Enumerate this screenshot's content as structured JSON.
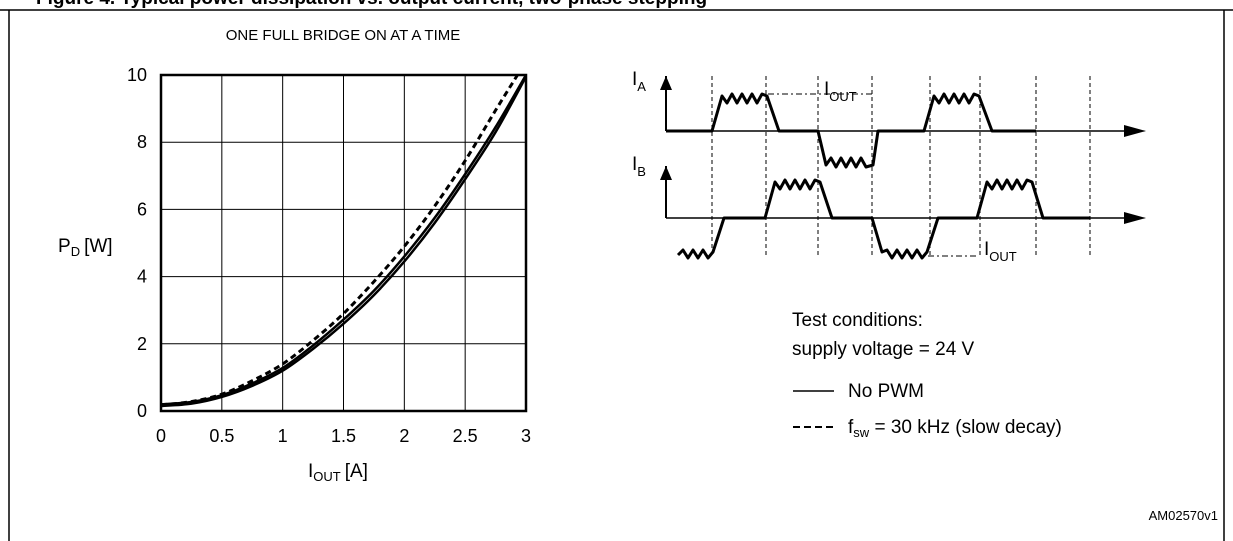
{
  "figure": {
    "heading": "Figure 4.  Typical power dissipation vs. output current, two-phase stepping",
    "chart_title": "ONE FULL BRIDGE ON AT A TIME",
    "code": "AM02570v1"
  },
  "chart_data": {
    "type": "line",
    "title": "ONE FULL BRIDGE ON AT A TIME",
    "ylabel_main": "P",
    "ylabel_sub": "D",
    "ylabel_unit": "[W]",
    "xlabel_main": "I",
    "xlabel_sub": "OUT",
    "xlabel_unit": "[A]",
    "xlim": [
      0,
      3
    ],
    "ylim": [
      0,
      10
    ],
    "xticks": [
      0,
      0.5,
      1,
      1.5,
      2,
      2.5,
      3
    ],
    "xtick_labels": [
      "0",
      "0.5",
      "1",
      "1.5",
      "2",
      "2.5",
      "3"
    ],
    "yticks": [
      0,
      2,
      4,
      6,
      8,
      10
    ],
    "ytick_labels": [
      "0",
      "2",
      "4",
      "6",
      "8",
      "10"
    ],
    "grid": true,
    "series": [
      {
        "style": "solid",
        "x": [
          0,
          0.25,
          0.5,
          0.75,
          1,
          1.25,
          1.5,
          1.75,
          2,
          2.25,
          2.5,
          2.75,
          3
        ],
        "y": [
          0.15,
          0.22,
          0.42,
          0.75,
          1.2,
          1.85,
          2.6,
          3.45,
          4.45,
          5.6,
          6.9,
          8.3,
          9.95
        ]
      },
      {
        "style": "solid",
        "x": [
          0,
          0.25,
          0.5,
          0.75,
          1,
          1.25,
          1.5,
          1.75,
          2,
          2.25,
          2.5,
          2.75,
          3
        ],
        "y": [
          0.2,
          0.27,
          0.47,
          0.82,
          1.28,
          1.95,
          2.72,
          3.58,
          4.6,
          5.75,
          7.05,
          8.45,
          10.0
        ]
      },
      {
        "style": "dashed",
        "x": [
          0,
          0.25,
          0.5,
          0.75,
          1,
          1.25,
          1.5,
          1.75,
          2,
          2.25,
          2.5,
          2.75,
          2.93
        ],
        "y": [
          0.18,
          0.28,
          0.5,
          0.9,
          1.4,
          2.1,
          2.9,
          3.85,
          4.9,
          6.1,
          7.45,
          8.95,
          10.0
        ]
      }
    ]
  },
  "waveform": {
    "ia_main": "I",
    "ia_sub": "A",
    "ib_main": "I",
    "ib_sub": "B",
    "iout_main": "I",
    "iout_sub": "OUT"
  },
  "legend": {
    "test_conditions": "Test conditions:",
    "supply_voltage": "supply voltage = 24 V",
    "no_pwm": "No PWM",
    "fsw_main": "f",
    "fsw_sub": "sw",
    "fsw_rest": " = 30 kHz (slow decay)"
  }
}
